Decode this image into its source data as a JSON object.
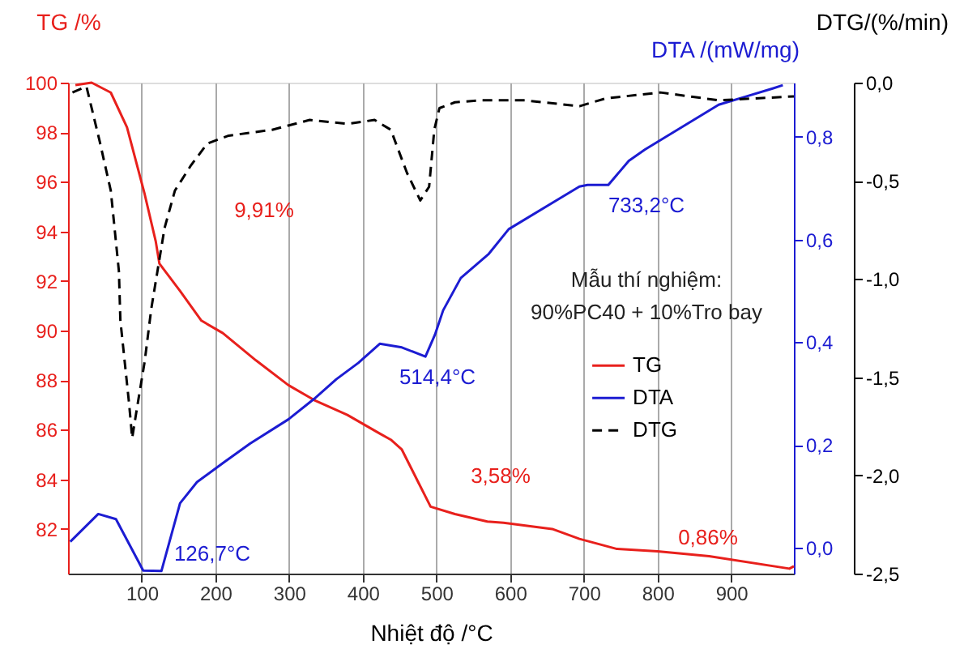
{
  "chart_data": {
    "type": "line",
    "xlabel": "Nhiệt độ /°C",
    "ylabel": "TG /%",
    "y2label": "DTA /(mW/mg)",
    "y3label": "DTG/(%/min)",
    "xlim": [
      0,
      985
    ],
    "xticks": [
      100,
      200,
      300,
      400,
      500,
      600,
      700,
      800,
      900
    ],
    "ylim": [
      80.2,
      100
    ],
    "yticks": [
      82,
      84,
      86,
      88,
      90,
      92,
      94,
      96,
      98,
      100
    ],
    "y2lim": [
      -0.05,
      0.905
    ],
    "y2ticks": [
      {
        "value": 0,
        "label": "0,0"
      },
      {
        "value": 0.2,
        "label": "0,2"
      },
      {
        "value": 0.4,
        "label": "0,4"
      },
      {
        "value": 0.6,
        "label": "0,6"
      },
      {
        "value": 0.8,
        "label": "0,8"
      }
    ],
    "y3lim": [
      -2.5,
      0
    ],
    "y3ticks": [
      {
        "value": -2.5,
        "label": "-2,5"
      },
      {
        "value": -2,
        "label": "-2,0"
      },
      {
        "value": -1.5,
        "label": "-1,5"
      },
      {
        "value": -1,
        "label": "-1,0"
      },
      {
        "value": -0.5,
        "label": "-0,5"
      },
      {
        "value": 0,
        "label": "0,0"
      }
    ],
    "grid": "x",
    "legend": "right",
    "marker": "none",
    "series": [
      {
        "name": "TG",
        "color": "#e8201c",
        "axis": "y",
        "line_style": "solid",
        "x": [
          10,
          32,
          58,
          80,
          104,
          119,
          124,
          152,
          181,
          210,
          255,
          299,
          334,
          379,
          423,
          438,
          453,
          475,
          492,
          525,
          569,
          591,
          657,
          694,
          744,
          800,
          870,
          979,
          985
        ],
        "values": [
          99.9,
          100,
          99.6,
          98.2,
          95.5,
          93.6,
          92.7,
          91.6,
          90.4,
          89.9,
          88.8,
          87.8,
          87.2,
          86.6,
          85.85,
          85.6,
          85.2,
          83.9,
          82.9,
          82.6,
          82.3,
          82.25,
          82.0,
          81.6,
          81.2,
          81.1,
          80.9,
          80.4,
          80.5
        ]
      },
      {
        "name": "DTA",
        "color": "#1c1cd2",
        "axis": "y2",
        "line_style": "solid",
        "x": [
          3,
          41,
          65,
          102,
          126.7,
          152,
          175,
          211,
          247,
          299,
          334,
          364,
          394,
          423,
          453,
          485,
          498,
          509,
          533,
          571,
          598,
          694,
          705,
          733.2,
          761,
          783,
          883,
          920,
          957,
          970
        ],
        "values": [
          0.012,
          0.066,
          0.056,
          -0.044,
          -0.045,
          0.087,
          0.128,
          0.166,
          0.203,
          0.25,
          0.29,
          0.328,
          0.36,
          0.397,
          0.39,
          0.372,
          0.415,
          0.462,
          0.525,
          0.572,
          0.62,
          0.703,
          0.706,
          0.706,
          0.753,
          0.775,
          0.862,
          0.878,
          0.894,
          0.9
        ]
      },
      {
        "name": "DTG",
        "color": "#000000",
        "axis": "y3",
        "line_style": "dashed",
        "x": [
          6,
          25,
          43,
          58,
          69,
          71,
          83,
          87,
          93,
          104,
          113,
          131,
          145,
          167,
          189,
          218,
          277,
          328,
          379,
          416,
          438,
          460,
          478,
          490,
          497,
          504,
          525,
          562,
          620,
          694,
          730,
          804,
          883,
          985
        ],
        "values": [
          -0.05,
          -0.02,
          -0.3,
          -0.55,
          -0.96,
          -1.21,
          -1.64,
          -1.81,
          -1.67,
          -1.42,
          -1.15,
          -0.74,
          -0.55,
          -0.42,
          -0.31,
          -0.27,
          -0.24,
          -0.19,
          -0.21,
          -0.19,
          -0.24,
          -0.46,
          -0.6,
          -0.53,
          -0.24,
          -0.13,
          -0.1,
          -0.09,
          -0.09,
          -0.12,
          -0.08,
          -0.05,
          -0.09,
          -0.07
        ]
      }
    ],
    "annotations": [
      "9,91%",
      "3,58%",
      "0,86%",
      "126,7°C",
      "514,4°C",
      "733,2°C",
      "Mẫu thí nghiệm:",
      "90%PC40 + 10%Tro bay"
    ]
  }
}
